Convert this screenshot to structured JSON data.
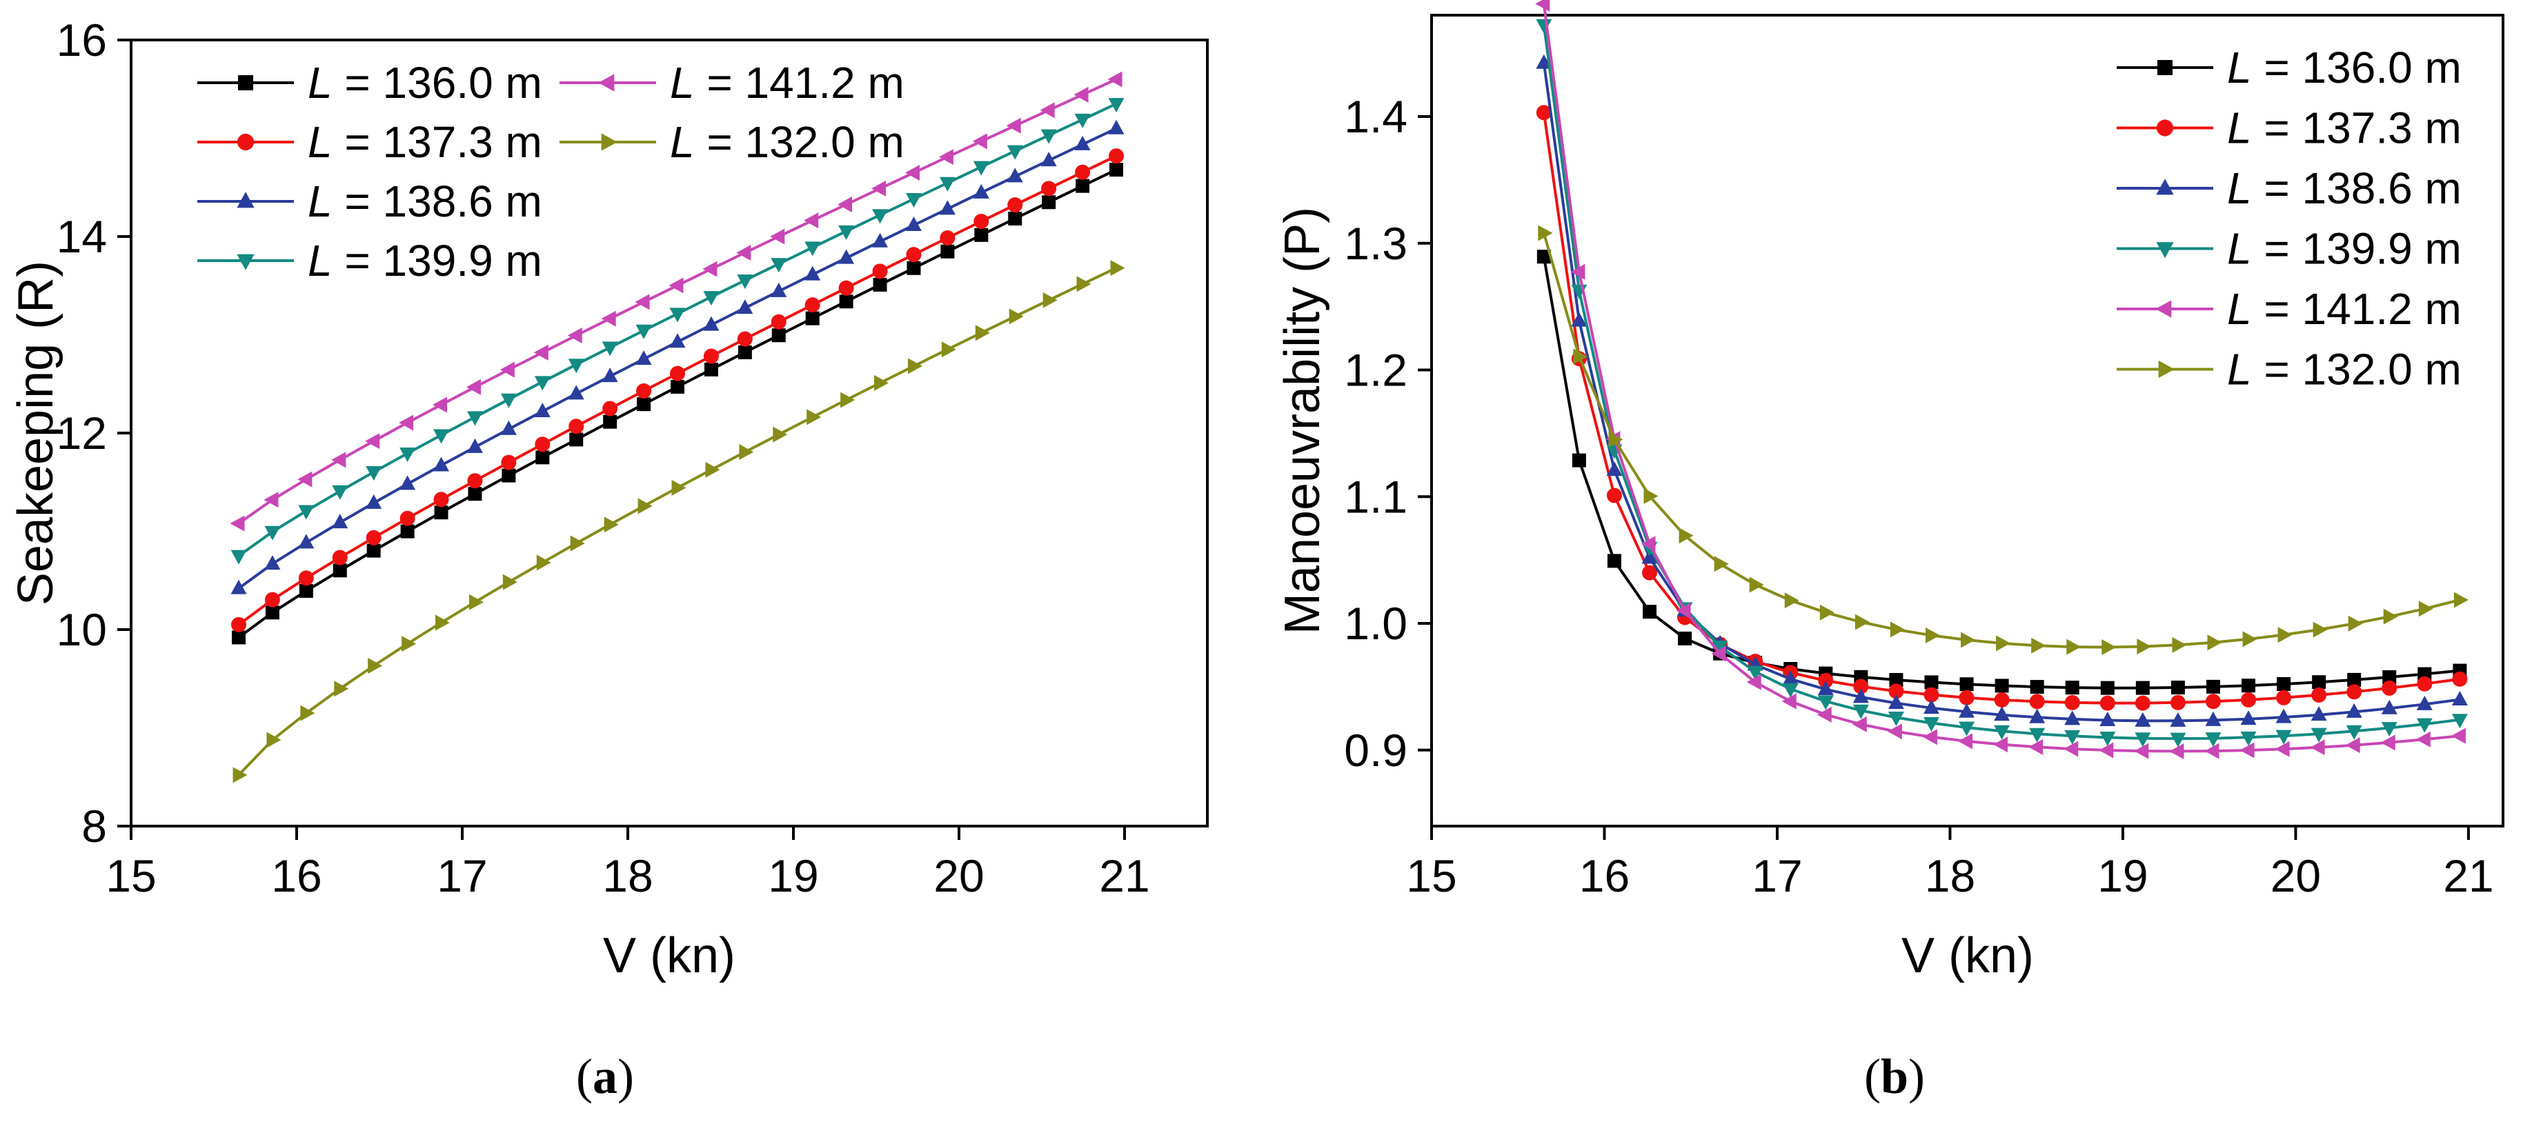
{
  "chart_data": [
    {
      "type": "line",
      "panel_label": "a",
      "xlabel": "V (kn)",
      "ylabel": "Seakeeping (R)",
      "xlim": [
        15,
        21.5
      ],
      "ylim": [
        8,
        16
      ],
      "xticks": [
        "15",
        "16",
        "17",
        "18",
        "19",
        "20",
        "21"
      ],
      "yticks": [
        "8",
        "10",
        "12",
        "14",
        "16"
      ],
      "xtick_values": [
        15,
        16,
        17,
        18,
        19,
        20,
        21
      ],
      "ytick_values": [
        8,
        10,
        12,
        14,
        16
      ],
      "legend_position": "top-left",
      "x_range": [
        15.65,
        20.95
      ],
      "n_points": 27,
      "series": [
        {
          "prefix": "L",
          "name": " = 136.0 m",
          "color": "#000000",
          "marker": "square",
          "curve": "power",
          "y_start": 9.92,
          "y_end": 14.68,
          "p": 0.9
        },
        {
          "prefix": "L",
          "name": " = 137.3 m",
          "color": "#ee1111",
          "marker": "circle",
          "curve": "power",
          "y_start": 10.05,
          "y_end": 14.82,
          "p": 0.9
        },
        {
          "prefix": "L",
          "name": " = 138.6 m",
          "color": "#2a3d9c",
          "marker": "triangle-up",
          "curve": "power",
          "y_start": 10.42,
          "y_end": 15.1,
          "p": 0.9
        },
        {
          "prefix": "L",
          "name": " = 139.9 m",
          "color": "#138a82",
          "marker": "triangle-down",
          "curve": "power",
          "y_start": 10.75,
          "y_end": 15.35,
          "p": 0.9
        },
        {
          "prefix": "L",
          "name": " = 141.2 m",
          "color": "#c946b5",
          "marker": "triangle-left",
          "curve": "power",
          "y_start": 11.08,
          "y_end": 15.6,
          "p": 0.9
        },
        {
          "prefix": "L",
          "name": " = 132.0 m",
          "color": "#878c19",
          "marker": "triangle-right",
          "curve": "power",
          "y_start": 8.52,
          "y_end": 13.68,
          "p": 0.82
        }
      ]
    },
    {
      "type": "line",
      "panel_label": "b",
      "xlabel": "V (kn)",
      "ylabel": "Manoeuvrability (P)",
      "xlim": [
        15,
        21.2
      ],
      "ylim": [
        0.84,
        1.48
      ],
      "xticks": [
        "15",
        "16",
        "17",
        "18",
        "19",
        "20",
        "21"
      ],
      "yticks": [
        "0.9",
        "1.0",
        "1.1",
        "1.2",
        "1.3",
        "1.4"
      ],
      "xtick_values": [
        15,
        16,
        17,
        18,
        19,
        20,
        21
      ],
      "ytick_values": [
        0.9,
        1.0,
        1.1,
        1.2,
        1.3,
        1.4
      ],
      "legend_position": "top-right",
      "x_range": [
        15.65,
        20.95
      ],
      "n_points": 27,
      "series": [
        {
          "prefix": "L",
          "name": " = 136.0 m",
          "color": "#000000",
          "marker": "square",
          "curve": "decay",
          "A": 0.3,
          "k": 3.6,
          "B": 0.0036,
          "v0": 19.0,
          "base": 0.949
        },
        {
          "prefix": "L",
          "name": " = 137.3 m",
          "color": "#ee1111",
          "marker": "circle",
          "curve": "decay",
          "A": 0.41,
          "k": 3.0,
          "B": 0.005,
          "v0": 19.0,
          "base": 0.937
        },
        {
          "prefix": "L",
          "name": " = 138.6 m",
          "color": "#2a3d9c",
          "marker": "triangle-up",
          "curve": "decay",
          "A": 0.45,
          "k": 2.8,
          "B": 0.0055,
          "v0": 19.2,
          "base": 0.923
        },
        {
          "prefix": "L",
          "name": " = 139.9 m",
          "color": "#138a82",
          "marker": "triangle-down",
          "curve": "decay",
          "A": 0.49,
          "k": 2.6,
          "B": 0.0055,
          "v0": 19.3,
          "base": 0.909
        },
        {
          "prefix": "L",
          "name": " = 141.2 m",
          "color": "#c946b5",
          "marker": "triangle-left",
          "curve": "decay",
          "A": 0.53,
          "k": 2.4,
          "B": 0.0045,
          "v0": 19.3,
          "base": 0.899
        },
        {
          "prefix": "L",
          "name": " = 132.0 m",
          "color": "#878c19",
          "marker": "triangle-right",
          "curve": "decay",
          "A": 0.24,
          "k": 2.2,
          "B": 0.0085,
          "v0": 18.85,
          "base": 0.981
        }
      ]
    }
  ],
  "captions": [
    "a",
    "b"
  ]
}
